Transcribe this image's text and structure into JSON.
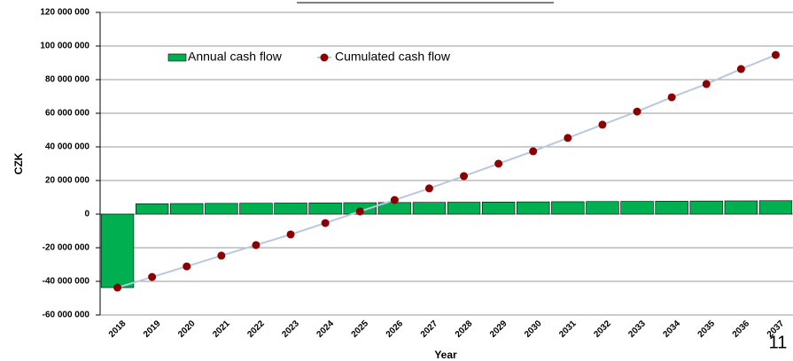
{
  "chart_data": {
    "type": "bar_line",
    "y_label": "CZK",
    "x_label": "Year",
    "page_number": "11",
    "categories": [
      "2018",
      "2019",
      "2020",
      "2021",
      "2022",
      "2023",
      "2024",
      "2025",
      "2026",
      "2027",
      "2028",
      "2029",
      "2030",
      "2031",
      "2032",
      "2033",
      "2034",
      "2035",
      "2036",
      "2037"
    ],
    "series": [
      {
        "name": "Annual cash flow",
        "type": "bar",
        "color": "#00b050",
        "values": [
          -43700000,
          6200000,
          6300000,
          6400000,
          6500000,
          6600000,
          6700000,
          6800000,
          6900000,
          7000000,
          7100000,
          7200000,
          7300000,
          7400000,
          7500000,
          7600000,
          7700000,
          7800000,
          7900000,
          8000000
        ]
      },
      {
        "name": "Cumulated cash flow",
        "type": "line",
        "color": "#8b0000",
        "line_color": "#b8c8e0",
        "values": [
          -43700000,
          -37400000,
          -31100000,
          -24700000,
          -18400000,
          -12100000,
          -5300000,
          1600000,
          8400000,
          15300000,
          22600000,
          30000000,
          37400000,
          45300000,
          53200000,
          61000000,
          69500000,
          77400000,
          86300000,
          94700000
        ]
      }
    ],
    "ylim": [
      -60000000,
      120000000
    ],
    "yticks": [
      {
        "value": -60000000,
        "label": "-60 000 000"
      },
      {
        "value": -40000000,
        "label": "-40 000 000"
      },
      {
        "value": -20000000,
        "label": "-20 000 000"
      },
      0,
      {
        "value": 20000000,
        "label": "20 000 000"
      },
      {
        "value": 40000000,
        "label": "40 000 000"
      },
      {
        "value": 60000000,
        "label": "60 000 000"
      },
      {
        "value": 80000000,
        "label": "80 000 000"
      },
      {
        "value": 100000000,
        "label": "100 000 000"
      },
      {
        "value": 120000000,
        "label": "120 000 000"
      }
    ],
    "grid": true
  }
}
